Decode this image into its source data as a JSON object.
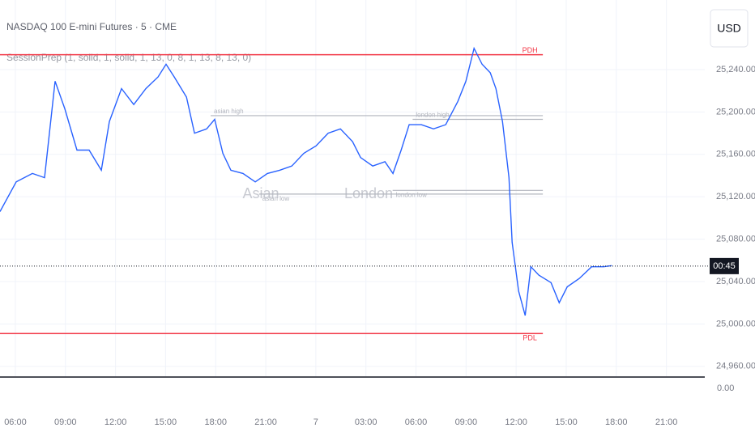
{
  "chart_data": {
    "type": "line",
    "title": "NASDAQ 100 E-mini Futures · 5 · CME",
    "subtitle": "SessionPrep (1, solid, 1, solid, 1, 13, 0, 8, 1, 13, 8, 13, 0)",
    "currency": "USD",
    "sessions": [
      "Asian",
      "London"
    ],
    "countdown": "00:45",
    "lower_pane_label": "0.00",
    "last_price": 25054.6,
    "color": "#2962ff",
    "x": [
      5.08,
      6.05,
      7.02,
      7.75,
      8.38,
      8.96,
      9.69,
      10.42,
      11.15,
      11.63,
      12.36,
      13.09,
      13.82,
      14.55,
      15.03,
      15.52,
      16.25,
      16.73,
      17.46,
      17.94,
      18.43,
      18.91,
      19.64,
      20.37,
      21.1,
      21.83,
      22.56,
      23.28,
      24.01,
      24.74,
      25.47,
      26.2,
      26.68,
      27.41,
      28.14,
      28.62,
      29.11,
      29.59,
      30.32,
      31.05,
      31.78,
      32.51,
      32.99,
      33.48,
      33.96,
      34.45,
      34.79,
      35.18,
      35.57,
      35.76,
      36.15,
      36.54,
      36.88,
      37.36,
      38.09,
      38.58,
      39.06,
      39.79,
      40.52,
      41.24,
      41.73
    ],
    "values": [
      25106,
      25134,
      25142,
      25138,
      25229,
      25203,
      25164,
      25164,
      25145,
      25191,
      25222,
      25207,
      25222,
      25233,
      25245,
      25233,
      25214,
      25180,
      25184,
      25193,
      25161,
      25145,
      25142,
      25134,
      25142,
      25145,
      25149,
      25161,
      25168,
      25180,
      25184,
      25172,
      25157,
      25149,
      25153,
      25142,
      25164,
      25188,
      25188,
      25184,
      25188,
      25210,
      25229,
      25260,
      25245,
      25237,
      25222,
      25191,
      25138,
      25077,
      25031,
      25008,
      25054,
      25046,
      25039,
      25020,
      25035,
      25043,
      25054,
      25054,
      25055
    ],
    "levels": [
      {
        "name": "PDH",
        "value": 25254,
        "color": "#f23645",
        "from": 5.08,
        "to": 37.6
      },
      {
        "name": "PDL",
        "value": 24991,
        "color": "#f23645",
        "from": 5.08,
        "to": 37.6
      },
      {
        "name": "asian high",
        "value": 25196.5,
        "color": "#b2b5be",
        "from": 17.7,
        "to": 37.6
      },
      {
        "name": "london high",
        "value": 25193,
        "color": "#b2b5be",
        "from": 29.8,
        "to": 37.6
      },
      {
        "name": "london low",
        "value": 25126,
        "color": "#b2b5be",
        "from": 28.6,
        "to": 37.6
      },
      {
        "name": "asian low",
        "value": 25122.5,
        "color": "#b2b5be",
        "from": 20.6,
        "to": 37.6
      }
    ],
    "xlim": [
      5.08,
      47.3
    ],
    "ylim": [
      24950.7,
      25305.6
    ],
    "yticks": [
      {
        "value": 25240,
        "label": "25,240.00"
      },
      {
        "value": 25200,
        "label": "25,200.00"
      },
      {
        "value": 25160,
        "label": "25,160.00"
      },
      {
        "value": 25120,
        "label": "25,120.00"
      },
      {
        "value": 25080,
        "label": "25,080.00"
      },
      {
        "value": 25040,
        "label": "25,040.00"
      },
      {
        "value": 25000,
        "label": "25,000.00"
      },
      {
        "value": 24960,
        "label": "24,960.00"
      }
    ],
    "xticks": [
      {
        "value": 6,
        "label": "06:00"
      },
      {
        "value": 9,
        "label": "09:00"
      },
      {
        "value": 12,
        "label": "12:00"
      },
      {
        "value": 15,
        "label": "15:00"
      },
      {
        "value": 18,
        "label": "18:00"
      },
      {
        "value": 21,
        "label": "21:00"
      },
      {
        "value": 24,
        "label": "7"
      },
      {
        "value": 27,
        "label": "03:00"
      },
      {
        "value": 30,
        "label": "06:00"
      },
      {
        "value": 33,
        "label": "09:00"
      },
      {
        "value": 36,
        "label": "12:00"
      },
      {
        "value": 39,
        "label": "15:00"
      },
      {
        "value": 42,
        "label": "18:00"
      },
      {
        "value": 45,
        "label": "21:00"
      }
    ],
    "grid": true
  }
}
